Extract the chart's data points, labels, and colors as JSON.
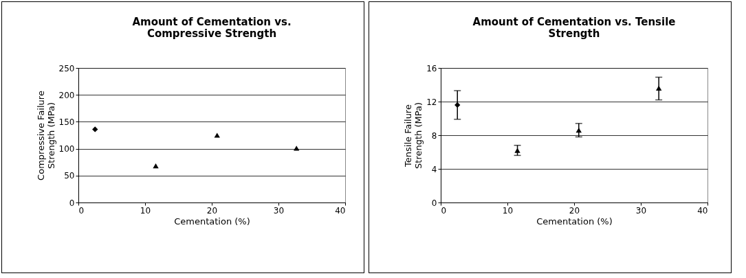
{
  "chart_data": [
    {
      "type": "scatter",
      "title": "Amount of Cementation vs. Compressive Strength",
      "xlabel": "Cementation (%)",
      "ylabel": "Compressive Failure Strength (MPa)",
      "xlim": [
        0,
        40
      ],
      "xticks": [
        0,
        10,
        20,
        30,
        40
      ],
      "ylim": [
        0,
        250
      ],
      "yticks": [
        0,
        50,
        100,
        150,
        200,
        250
      ],
      "grid": "y",
      "legend": false,
      "series": [
        {
          "color": "#000000",
          "marker": "diamond",
          "x": [
            2.5
          ],
          "values": [
            136
          ]
        },
        {
          "color": "#000000",
          "marker": "triangle",
          "x": [
            11.6,
            20.8,
            32.7
          ],
          "values": [
            68,
            125,
            101
          ]
        }
      ]
    },
    {
      "type": "scatter",
      "title": "Amount of Cementation vs. Tensile Strength",
      "xlabel": "Cementation (%)",
      "ylabel": "Tensile Failure Strength (MPa)",
      "xlim": [
        0,
        40
      ],
      "xticks": [
        0,
        10,
        20,
        30,
        40
      ],
      "ylim": [
        0,
        16
      ],
      "yticks": [
        0,
        4,
        8,
        12,
        16
      ],
      "grid": "y",
      "legend": false,
      "series": [
        {
          "color": "#000000",
          "marker": "diamond",
          "x": [
            2.5
          ],
          "values": [
            11.6
          ],
          "errors": [
            [
              9.9,
              13.3
            ]
          ]
        },
        {
          "color": "#000000",
          "marker": "triangle",
          "x": [
            11.5,
            20.7,
            32.7
          ],
          "values": [
            6.2,
            8.6,
            13.6
          ],
          "errors": [
            [
              5.6,
              6.8
            ],
            [
              7.8,
              9.4
            ],
            [
              12.2,
              14.9
            ]
          ]
        }
      ]
    }
  ]
}
